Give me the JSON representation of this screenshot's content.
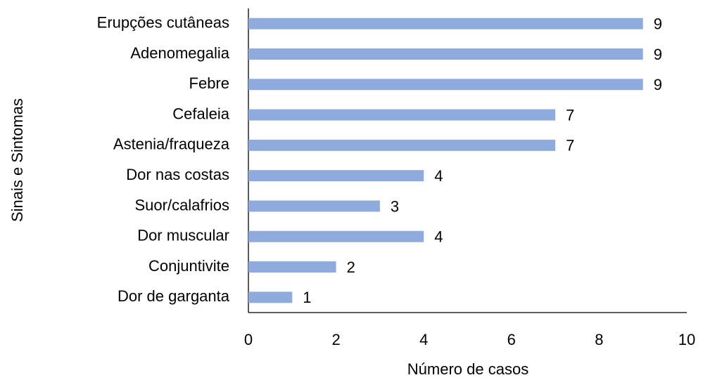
{
  "chart_data": {
    "type": "bar",
    "orientation": "horizontal",
    "categories": [
      "Erupções cutâneas",
      "Adenomegalia",
      "Febre",
      "Cefaleia",
      "Astenia/fraqueza",
      "Dor nas costas",
      "Suor/calafrios",
      "Dor muscular",
      "Conjuntivite",
      "Dor de garganta"
    ],
    "values": [
      9,
      9,
      9,
      7,
      7,
      4,
      3,
      4,
      2,
      1
    ],
    "color": "#8faadc",
    "xlim": [
      0,
      10
    ],
    "xticks": [
      0,
      2,
      4,
      6,
      8,
      10
    ],
    "xlabel": "Número de casos",
    "ylabel": "Sinais e Sintomas"
  }
}
